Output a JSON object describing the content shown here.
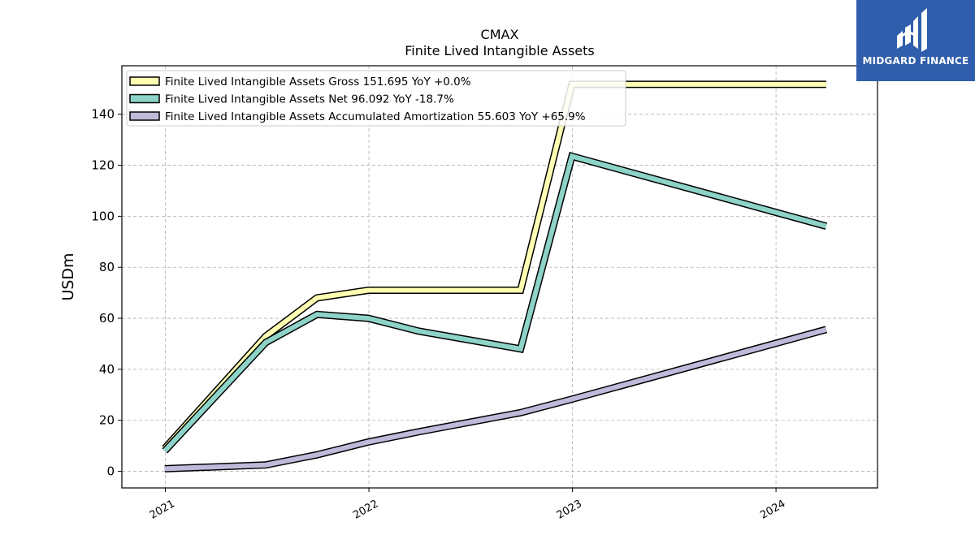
{
  "chart_data": {
    "type": "line",
    "title": "CMAX",
    "subtitle": "Finite Lived Intangible Assets",
    "ylabel": "USDm",
    "xlabel": "",
    "ylim": [
      -6.5,
      159
    ],
    "xlim": [
      "2020-10-15",
      "2024-07-01"
    ],
    "yticks": [
      0,
      20,
      40,
      60,
      80,
      100,
      120,
      140
    ],
    "xticks": [
      {
        "date": "2021-01-01",
        "label": "2021"
      },
      {
        "date": "2022-01-01",
        "label": "2022"
      },
      {
        "date": "2023-01-01",
        "label": "2023"
      },
      {
        "date": "2024-01-01",
        "label": "2024"
      }
    ],
    "grid": true,
    "legend_position": "top-left",
    "series": [
      {
        "name": "Finite Lived Intangible Assets Gross",
        "legend_label": "Finite Lived Intangible Assets Gross  151.695 YoY +0.0%",
        "color": "#ffffb3",
        "points": [
          [
            "2020-12-31",
            9.0
          ],
          [
            "2021-06-30",
            53.0
          ],
          [
            "2021-09-30",
            68.0
          ],
          [
            "2021-12-31",
            71.0
          ],
          [
            "2022-03-31",
            71.0
          ],
          [
            "2022-09-30",
            71.0
          ],
          [
            "2022-12-31",
            151.7
          ],
          [
            "2024-03-31",
            151.7
          ]
        ]
      },
      {
        "name": "Finite Lived Intangible Assets Net",
        "legend_label": "Finite Lived Intangible Assets Net  96.092 YoY -18.7%",
        "color": "#8dd3c7",
        "points": [
          [
            "2020-12-31",
            8.0
          ],
          [
            "2021-06-30",
            50.5
          ],
          [
            "2021-09-30",
            61.5
          ],
          [
            "2021-12-31",
            60.0
          ],
          [
            "2022-03-31",
            55.0
          ],
          [
            "2022-09-30",
            48.0
          ],
          [
            "2022-12-31",
            123.5
          ],
          [
            "2024-03-31",
            96.1
          ]
        ]
      },
      {
        "name": "Finite Lived Intangible Assets Accumulated Amortization",
        "legend_label": "Finite Lived Intangible Assets Accumulated Amortization  55.603 YoY +65.9%",
        "color": "#bebada",
        "points": [
          [
            "2020-12-31",
            1.0
          ],
          [
            "2021-06-30",
            2.5
          ],
          [
            "2021-09-30",
            6.5
          ],
          [
            "2021-12-31",
            11.5
          ],
          [
            "2022-03-31",
            15.5
          ],
          [
            "2022-09-30",
            23.0
          ],
          [
            "2022-12-31",
            28.3
          ],
          [
            "2024-03-31",
            55.6
          ]
        ]
      }
    ]
  },
  "brand": {
    "name": "MIDGARD FINANCE",
    "background": "#2f5ead"
  }
}
